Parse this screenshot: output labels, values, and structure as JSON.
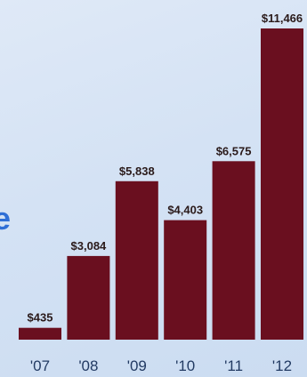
{
  "chart_data": {
    "type": "bar",
    "categories": [
      "'07",
      "'08",
      "'09",
      "'10",
      "'11",
      "'12"
    ],
    "values": [
      435,
      3084,
      5838,
      4403,
      6575,
      11466
    ],
    "data_labels": [
      "$435",
      "$3,084",
      "$5,838",
      "$4,403",
      "$6,575",
      "$11,466"
    ],
    "title": "",
    "xlabel": "",
    "ylabel": "",
    "ylim": [
      0,
      11466
    ],
    "grid": false,
    "legend": "none",
    "colors": {
      "bar": "#6a0f1f",
      "background": "#d4e2f4",
      "tick_text": "#233b63",
      "label_text": "#2a1a1a"
    }
  },
  "edge_fragment": {
    "text": "e",
    "color": "#2f6fd6"
  }
}
